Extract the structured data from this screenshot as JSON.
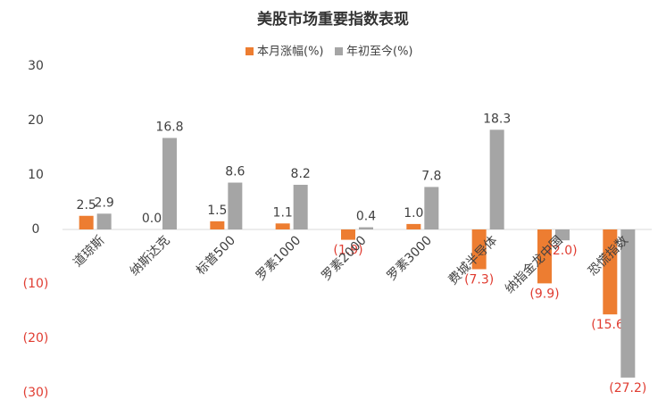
{
  "chart_data": {
    "type": "bar",
    "title": "美股市场重要指数表现",
    "categories": [
      "道琼斯",
      "纳斯达克",
      "标普500",
      "罗素1000",
      "罗素2000",
      "罗素3000",
      "费城半导体",
      "纳指金龙中国",
      "恐慌指数"
    ],
    "series": [
      {
        "name": "本月涨幅(%)",
        "color": "#ed7d31",
        "values": [
          2.5,
          0.0,
          1.5,
          1.1,
          -1.9,
          1.0,
          -7.3,
          -9.9,
          -15.6
        ],
        "value_labels": [
          "2.5",
          "0.0",
          "1.5",
          "1.1",
          "(1.9)",
          "1.0",
          "(7.3)",
          "(9.9)",
          "(15.6)"
        ]
      },
      {
        "name": "年初至今(%)",
        "color": "#a5a5a5",
        "values": [
          2.9,
          16.8,
          8.6,
          8.2,
          0.4,
          7.8,
          18.3,
          -2.0,
          -27.2
        ],
        "value_labels": [
          "2.9",
          "16.8",
          "8.6",
          "8.2",
          "0.4",
          "7.8",
          "18.3",
          "(2.0)",
          "(27.2)"
        ]
      }
    ],
    "ylim": [
      -30,
      30
    ],
    "yticks": [
      {
        "value": -30,
        "label": "(30)"
      },
      {
        "value": -20,
        "label": "(20)"
      },
      {
        "value": -10,
        "label": "(10)"
      },
      0,
      10,
      20,
      30
    ],
    "negative_color": "#e03c31",
    "grid": false,
    "legend": "top"
  }
}
